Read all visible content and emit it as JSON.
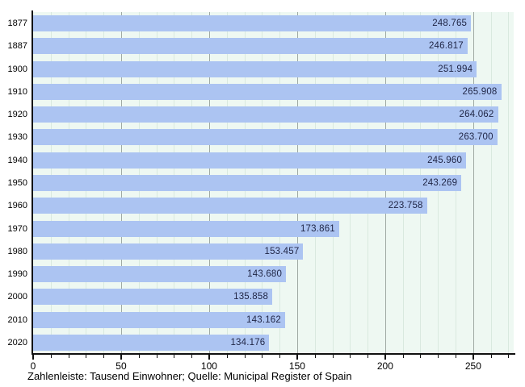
{
  "chart_data": {
    "type": "bar",
    "orientation": "horizontal",
    "title": "",
    "xlabel": "",
    "ylabel": "",
    "caption": "Zahlenleiste: Tausend Einwohner; Quelle: Municipal Register of Spain",
    "unit": "Tausend Einwohner",
    "source": "Municipal Register of Spain",
    "categories": [
      "1877",
      "1887",
      "1900",
      "1910",
      "1920",
      "1930",
      "1940",
      "1950",
      "1960",
      "1970",
      "1980",
      "1990",
      "2000",
      "2010",
      "2020"
    ],
    "values": [
      248.765,
      246.817,
      251.994,
      265.908,
      264.062,
      263.7,
      245.96,
      243.269,
      223.758,
      173.861,
      153.457,
      143.68,
      135.858,
      143.162,
      134.176
    ],
    "value_labels": [
      "248.765",
      "246.817",
      "251.994",
      "265.908",
      "264.062",
      "263.700",
      "245.960",
      "243.269",
      "223.758",
      "173.861",
      "153.457",
      "143.680",
      "135.858",
      "143.162",
      "134.176"
    ],
    "xlim": [
      0,
      273
    ],
    "x_major_ticks": [
      0,
      50,
      100,
      150,
      200,
      250
    ],
    "x_major_tick_labels": [
      "0",
      "50",
      "100",
      "150",
      "200",
      "250"
    ],
    "x_minor_tick_step": 10,
    "x_minor_tick_max": 270,
    "grid": "vertical",
    "legend": "none",
    "colors": {
      "bar": "#acc4f2",
      "plot_background": "#eef8f2",
      "minor_gridline": "#d9e9df",
      "major_gridline": "#a0aaa4",
      "axis": "#111111",
      "value_label": "#1f2545",
      "tick_label": "#000000",
      "caption": "#000000"
    }
  }
}
